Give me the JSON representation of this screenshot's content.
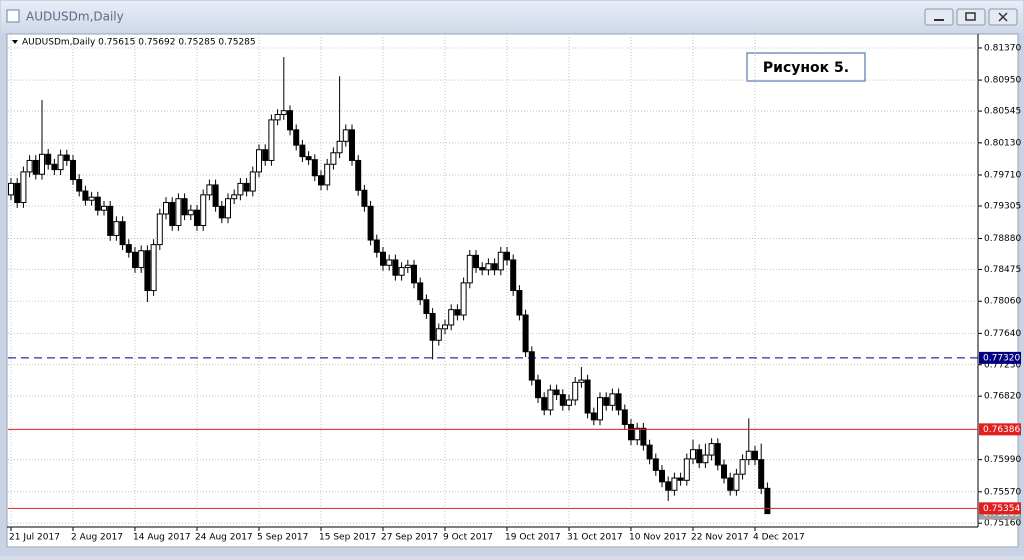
{
  "window_title": "AUDUSDm,Daily",
  "chart_data": {
    "type": "candlestick",
    "info": "AUDUSDm,Daily  0.75615 0.75692 0.75285 0.75285",
    "annotation": "Рисунок 5.",
    "up_color": "#ffffff",
    "down_color": "#000000",
    "grid": true,
    "x": [
      "21 Jul 2017",
      null,
      null,
      null,
      null,
      null,
      null,
      null,
      null,
      null,
      "2 Aug 2017",
      null,
      null,
      null,
      null,
      null,
      null,
      null,
      null,
      null,
      "14 Aug 2017",
      null,
      null,
      null,
      null,
      null,
      null,
      null,
      null,
      null,
      "24 Aug 2017",
      null,
      null,
      null,
      null,
      null,
      null,
      null,
      null,
      null,
      "5 Sep 2017",
      null,
      null,
      null,
      null,
      null,
      null,
      null,
      null,
      null,
      "15 Sep 2017",
      null,
      null,
      null,
      null,
      null,
      null,
      null,
      null,
      null,
      "27 Sep 2017",
      null,
      null,
      null,
      null,
      null,
      null,
      null,
      null,
      null,
      "9 Oct 2017",
      null,
      null,
      null,
      null,
      null,
      null,
      null,
      null,
      null,
      "19 Oct 2017",
      null,
      null,
      null,
      null,
      null,
      null,
      null,
      null,
      null,
      "31 Oct 2017",
      null,
      null,
      null,
      null,
      null,
      null,
      null,
      null,
      null,
      "10 Nov 2017",
      null,
      null,
      null,
      null,
      null,
      null,
      null,
      null,
      null,
      "22 Nov 2017",
      null,
      null,
      null,
      null,
      null,
      null,
      null,
      null,
      null,
      "4 Dec 2017",
      null,
      null
    ],
    "ohlc": [
      [
        0.7945,
        0.7967,
        0.7938,
        0.796
      ],
      [
        0.796,
        0.7967,
        0.7928,
        0.7935
      ],
      [
        0.7935,
        0.7982,
        0.7928,
        0.7975
      ],
      [
        0.7975,
        0.7997,
        0.7968,
        0.799
      ],
      [
        0.799,
        0.7997,
        0.7965,
        0.7972
      ],
      [
        0.7972,
        0.8069,
        0.7965,
        0.7998
      ],
      [
        0.7998,
        0.8005,
        0.7978,
        0.7985
      ],
      [
        0.7985,
        0.7992,
        0.7971,
        0.7978
      ],
      [
        0.7978,
        0.8004,
        0.7971,
        0.7997
      ],
      [
        0.7997,
        0.8004,
        0.7983,
        0.799
      ],
      [
        0.799,
        0.7997,
        0.7958,
        0.7965
      ],
      [
        0.7965,
        0.7972,
        0.7943,
        0.795
      ],
      [
        0.795,
        0.7957,
        0.7931,
        0.7938
      ],
      [
        0.7938,
        0.7949,
        0.7931,
        0.7942
      ],
      [
        0.7942,
        0.7949,
        0.7918,
        0.7925
      ],
      [
        0.7925,
        0.7937,
        0.7918,
        0.793
      ],
      [
        0.793,
        0.7937,
        0.7885,
        0.7892
      ],
      [
        0.7892,
        0.7917,
        0.7885,
        0.791
      ],
      [
        0.791,
        0.7917,
        0.7873,
        0.788
      ],
      [
        0.788,
        0.7887,
        0.7863,
        0.787
      ],
      [
        0.787,
        0.7877,
        0.7843,
        0.785
      ],
      [
        0.785,
        0.7879,
        0.7843,
        0.7872
      ],
      [
        0.7872,
        0.7879,
        0.7805,
        0.782
      ],
      [
        0.782,
        0.7887,
        0.7813,
        0.788
      ],
      [
        0.788,
        0.7927,
        0.7873,
        0.792
      ],
      [
        0.792,
        0.7942,
        0.7913,
        0.7935
      ],
      [
        0.7935,
        0.7942,
        0.7898,
        0.7905
      ],
      [
        0.7905,
        0.7947,
        0.7898,
        0.794
      ],
      [
        0.794,
        0.7947,
        0.7912,
        0.7919
      ],
      [
        0.7919,
        0.7932,
        0.7912,
        0.7925
      ],
      [
        0.7925,
        0.7932,
        0.7898,
        0.7905
      ],
      [
        0.7905,
        0.7952,
        0.7898,
        0.7945
      ],
      [
        0.7945,
        0.7965,
        0.7938,
        0.7958
      ],
      [
        0.7958,
        0.7965,
        0.7923,
        0.793
      ],
      [
        0.793,
        0.7937,
        0.7908,
        0.7915
      ],
      [
        0.7915,
        0.7947,
        0.7908,
        0.794
      ],
      [
        0.794,
        0.7952,
        0.7933,
        0.7945
      ],
      [
        0.7945,
        0.7967,
        0.7938,
        0.796
      ],
      [
        0.796,
        0.7967,
        0.7943,
        0.795
      ],
      [
        0.795,
        0.7982,
        0.7943,
        0.7975
      ],
      [
        0.7975,
        0.8011,
        0.7968,
        0.8004
      ],
      [
        0.8004,
        0.8011,
        0.7983,
        0.799
      ],
      [
        0.799,
        0.805,
        0.7983,
        0.8043
      ],
      [
        0.8043,
        0.8057,
        0.8036,
        0.805
      ],
      [
        0.805,
        0.8125,
        0.8043,
        0.8055
      ],
      [
        0.8055,
        0.8062,
        0.8023,
        0.803
      ],
      [
        0.803,
        0.8037,
        0.8003,
        0.801
      ],
      [
        0.801,
        0.8017,
        0.7988,
        0.7995
      ],
      [
        0.7995,
        0.8002,
        0.7984,
        0.7991
      ],
      [
        0.7991,
        0.7998,
        0.7963,
        0.797
      ],
      [
        0.797,
        0.7977,
        0.7951,
        0.7958
      ],
      [
        0.7958,
        0.7992,
        0.7951,
        0.7985
      ],
      [
        0.7985,
        0.8007,
        0.7978,
        0.8
      ],
      [
        0.8,
        0.81,
        0.7993,
        0.8015
      ],
      [
        0.8015,
        0.8037,
        0.8008,
        0.803
      ],
      [
        0.803,
        0.8037,
        0.7983,
        0.799
      ],
      [
        0.799,
        0.7997,
        0.7944,
        0.7951
      ],
      [
        0.7951,
        0.7958,
        0.7923,
        0.793
      ],
      [
        0.793,
        0.7937,
        0.7879,
        0.7886
      ],
      [
        0.7886,
        0.7893,
        0.7863,
        0.787
      ],
      [
        0.787,
        0.7877,
        0.7846,
        0.7853
      ],
      [
        0.7853,
        0.7867,
        0.7846,
        0.786
      ],
      [
        0.786,
        0.7867,
        0.7833,
        0.784
      ],
      [
        0.784,
        0.7857,
        0.7833,
        0.785
      ],
      [
        0.785,
        0.786,
        0.7843,
        0.7853
      ],
      [
        0.7853,
        0.786,
        0.7823,
        0.783
      ],
      [
        0.783,
        0.7837,
        0.7801,
        0.7808
      ],
      [
        0.7808,
        0.7815,
        0.7783,
        0.779
      ],
      [
        0.779,
        0.7797,
        0.773,
        0.7755
      ],
      [
        0.7755,
        0.7777,
        0.7748,
        0.777
      ],
      [
        0.777,
        0.7782,
        0.7763,
        0.7775
      ],
      [
        0.7775,
        0.7802,
        0.7768,
        0.7795
      ],
      [
        0.7795,
        0.7802,
        0.7781,
        0.7788
      ],
      [
        0.7788,
        0.7837,
        0.7781,
        0.783
      ],
      [
        0.783,
        0.7873,
        0.7823,
        0.7866
      ],
      [
        0.7866,
        0.7873,
        0.7843,
        0.785
      ],
      [
        0.785,
        0.7857,
        0.784,
        0.7847
      ],
      [
        0.7847,
        0.7862,
        0.784,
        0.7855
      ],
      [
        0.7855,
        0.7862,
        0.784,
        0.7847
      ],
      [
        0.7847,
        0.7877,
        0.784,
        0.787
      ],
      [
        0.787,
        0.7877,
        0.7853,
        0.786
      ],
      [
        0.786,
        0.7867,
        0.7813,
        0.782
      ],
      [
        0.782,
        0.7827,
        0.7781,
        0.7788
      ],
      [
        0.7788,
        0.7795,
        0.7733,
        0.774
      ],
      [
        0.774,
        0.7747,
        0.7696,
        0.7703
      ],
      [
        0.7703,
        0.771,
        0.7673,
        0.768
      ],
      [
        0.768,
        0.7687,
        0.7657,
        0.7664
      ],
      [
        0.7664,
        0.7697,
        0.7657,
        0.769
      ],
      [
        0.769,
        0.7697,
        0.7677,
        0.7684
      ],
      [
        0.7684,
        0.7691,
        0.7663,
        0.767
      ],
      [
        0.767,
        0.7684,
        0.7663,
        0.7677
      ],
      [
        0.7677,
        0.7707,
        0.767,
        0.77
      ],
      [
        0.77,
        0.772,
        0.7693,
        0.7703
      ],
      [
        0.7703,
        0.771,
        0.7653,
        0.766
      ],
      [
        0.766,
        0.7667,
        0.7644,
        0.7651
      ],
      [
        0.7651,
        0.7687,
        0.7644,
        0.768
      ],
      [
        0.768,
        0.7687,
        0.7663,
        0.767
      ],
      [
        0.767,
        0.7692,
        0.7663,
        0.7685
      ],
      [
        0.7685,
        0.7692,
        0.7657,
        0.7664
      ],
      [
        0.7664,
        0.7671,
        0.7638,
        0.7645
      ],
      [
        0.7645,
        0.7652,
        0.7618,
        0.7625
      ],
      [
        0.7625,
        0.7647,
        0.7618,
        0.764
      ],
      [
        0.764,
        0.7647,
        0.7611,
        0.7618
      ],
      [
        0.7618,
        0.7625,
        0.7593,
        0.76
      ],
      [
        0.76,
        0.7607,
        0.7578,
        0.7585
      ],
      [
        0.7585,
        0.7592,
        0.7563,
        0.757
      ],
      [
        0.757,
        0.7577,
        0.7545,
        0.7559
      ],
      [
        0.7559,
        0.7582,
        0.7552,
        0.7575
      ],
      [
        0.7575,
        0.7582,
        0.7565,
        0.7572
      ],
      [
        0.7572,
        0.7607,
        0.7565,
        0.76
      ],
      [
        0.76,
        0.7625,
        0.7593,
        0.7612
      ],
      [
        0.7612,
        0.7619,
        0.7588,
        0.7595
      ],
      [
        0.7595,
        0.762,
        0.7588,
        0.7605
      ],
      [
        0.7605,
        0.7627,
        0.7598,
        0.762
      ],
      [
        0.762,
        0.7627,
        0.7585,
        0.7592
      ],
      [
        0.7592,
        0.7599,
        0.7568,
        0.7575
      ],
      [
        0.7575,
        0.7582,
        0.7552,
        0.7559
      ],
      [
        0.7559,
        0.7587,
        0.7552,
        0.758
      ],
      [
        0.758,
        0.7606,
        0.7573,
        0.7599
      ],
      [
        0.7599,
        0.7653,
        0.7592,
        0.761
      ],
      [
        0.761,
        0.7617,
        0.7592,
        0.7599
      ],
      [
        0.7599,
        0.762,
        0.7554,
        0.75615
      ],
      [
        0.75615,
        0.75692,
        0.75285,
        0.75285
      ]
    ],
    "ylim": [
      0.7511,
      0.815
    ],
    "yticks": [
      {
        "value": 0.8137,
        "label": "0.81370"
      },
      {
        "value": 0.8095,
        "label": "0.80950"
      },
      {
        "value": 0.80545,
        "label": "0.80545"
      },
      {
        "value": 0.8013,
        "label": "0.80130"
      },
      {
        "value": 0.7971,
        "label": "0.79710"
      },
      {
        "value": 0.79305,
        "label": "0.79305"
      },
      {
        "value": 0.7888,
        "label": "0.78880"
      },
      {
        "value": 0.78475,
        "label": "0.78475"
      },
      {
        "value": 0.7806,
        "label": "0.78060"
      },
      {
        "value": 0.7764,
        "label": "0.77640"
      },
      {
        "value": 0.7723,
        "label": "0.77230"
      },
      {
        "value": 0.7682,
        "label": "0.76820"
      },
      {
        "value": 0.7599,
        "label": "0.75990"
      },
      {
        "value": 0.7557,
        "label": "0.75570"
      },
      {
        "value": 0.7516,
        "label": "0.75160"
      }
    ],
    "levels": [
      {
        "value": 0.7732,
        "label": "0.77320",
        "color": "#000080",
        "dash": true,
        "line": true
      },
      {
        "value": 0.76386,
        "label": "0.76386",
        "color": "#e02020",
        "dash": false,
        "line": true
      },
      {
        "value": 0.75285,
        "label": "0.75285",
        "color": "#a0a0a0",
        "dash": false,
        "line": false
      },
      {
        "value": 0.75354,
        "label": "0.75354",
        "color": "#e02020",
        "dash": false,
        "line": true
      }
    ]
  }
}
